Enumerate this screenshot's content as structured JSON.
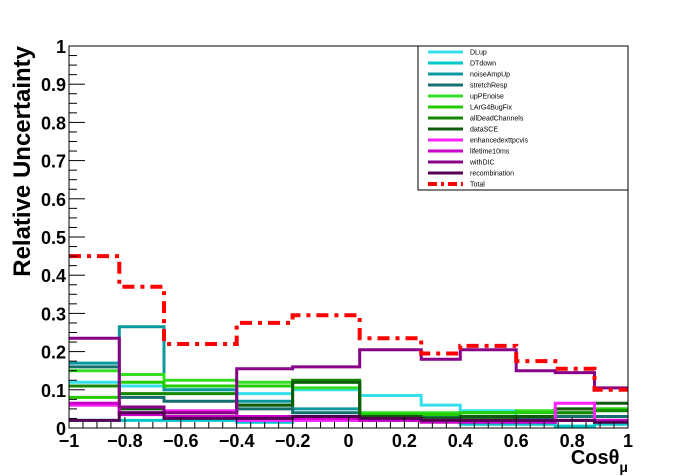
{
  "chart_data": {
    "type": "line",
    "step": true,
    "xlabel": "Cosθ",
    "xlabel_sub": "μ",
    "ylabel": "Relative Uncertainty",
    "xlim": [
      -1,
      1
    ],
    "ylim": [
      0,
      1
    ],
    "x_ticks": [
      -1,
      -0.8,
      -0.6,
      -0.4,
      -0.2,
      0,
      0.2,
      0.4,
      0.6,
      0.8,
      1
    ],
    "x_tick_labels": [
      "−1",
      "−0.8",
      "−0.6",
      "−0.4",
      "−0.2",
      "0",
      "0.2",
      "0.4",
      "0.6",
      "0.8",
      "1"
    ],
    "y_ticks": [
      0,
      0.1,
      0.2,
      0.3,
      0.4,
      0.5,
      0.6,
      0.7,
      0.8,
      0.9,
      1
    ],
    "y_tick_labels": [
      "0",
      "0.1",
      "0.2",
      "0.3",
      "0.4",
      "0.5",
      "0.6",
      "0.7",
      "0.8",
      "0.9",
      "1"
    ],
    "legend_position": "top-right",
    "bin_edges": [
      -1,
      -0.82,
      -0.66,
      -0.4,
      -0.2,
      0.04,
      0.26,
      0.4,
      0.6,
      0.74,
      0.88,
      1
    ],
    "series": [
      {
        "name": "DLup",
        "color": "#33e0ec",
        "width": 3,
        "dash": "solid",
        "values": [
          0.12,
          0.11,
          0.1,
          0.09,
          0.1,
          0.085,
          0.06,
          0.045,
          0.03,
          0.03,
          0.03
        ]
      },
      {
        "name": "DTdown",
        "color": "#00c8cc",
        "width": 3,
        "dash": "solid",
        "values": [
          0.02,
          0.02,
          0.02,
          0.015,
          0.02,
          0.02,
          0.02,
          0.01,
          0.01,
          0.005,
          0.01
        ]
      },
      {
        "name": "noiseAmpUp",
        "color": "#0a9a9e",
        "width": 3,
        "dash": "solid",
        "values": [
          0.17,
          0.265,
          0.1,
          0.07,
          0.05,
          0.035,
          0.03,
          0.03,
          0.03,
          0.03,
          0.03
        ]
      },
      {
        "name": "stretchResp",
        "color": "#156f6f",
        "width": 3,
        "dash": "solid",
        "values": [
          0.16,
          0.08,
          0.07,
          0.05,
          0.04,
          0.03,
          0.03,
          0.025,
          0.025,
          0.03,
          0.03
        ]
      },
      {
        "name": "upPEnoise",
        "color": "#33dd22",
        "width": 3,
        "dash": "solid",
        "values": [
          0.15,
          0.14,
          0.125,
          0.12,
          0.105,
          0.04,
          0.04,
          0.04,
          0.045,
          0.05,
          0.05
        ]
      },
      {
        "name": "LArG4BugFix",
        "color": "#22cc00",
        "width": 3,
        "dash": "solid",
        "values": [
          0.08,
          0.12,
          0.11,
          0.11,
          0.12,
          0.035,
          0.035,
          0.04,
          0.04,
          0.04,
          0.05
        ]
      },
      {
        "name": "allDeadChannels",
        "color": "#118800",
        "width": 3,
        "dash": "solid",
        "values": [
          0.11,
          0.09,
          0.09,
          0.06,
          0.125,
          0.02,
          0.02,
          0.025,
          0.03,
          0.04,
          0.045
        ]
      },
      {
        "name": "dataSCE",
        "color": "#0c5c0c",
        "width": 3,
        "dash": "solid",
        "values": [
          0.06,
          0.05,
          0.04,
          0.06,
          0.12,
          0.03,
          0.025,
          0.03,
          0.03,
          0.05,
          0.065
        ]
      },
      {
        "name": "enhancedexttpcvis",
        "color": "#ff22ff",
        "width": 3,
        "dash": "solid",
        "values": [
          0.06,
          0.04,
          0.045,
          0.02,
          0.02,
          0.02,
          0.02,
          0.02,
          0.02,
          0.065,
          0.02
        ]
      },
      {
        "name": "lifetime10ms",
        "color": "#cc00cc",
        "width": 3,
        "dash": "solid",
        "values": [
          0.065,
          0.035,
          0.03,
          0.03,
          0.025,
          0.02,
          0.015,
          0.015,
          0.015,
          0.02,
          0.02
        ]
      },
      {
        "name": "withDIC",
        "color": "#880088",
        "width": 3,
        "dash": "solid",
        "values": [
          0.235,
          0.055,
          0.04,
          0.155,
          0.16,
          0.205,
          0.18,
          0.205,
          0.15,
          0.145,
          0.105
        ]
      },
      {
        "name": "recombination",
        "color": "#550055",
        "width": 3,
        "dash": "solid",
        "values": [
          0.02,
          0.04,
          0.025,
          0.025,
          0.03,
          0.025,
          0.02,
          0.02,
          0.02,
          0.02,
          0.015
        ]
      },
      {
        "name": "Total",
        "color": "#ff0000",
        "width": 4,
        "dash": "12,6,4,6",
        "values": [
          0.45,
          0.37,
          0.22,
          0.275,
          0.295,
          0.235,
          0.195,
          0.215,
          0.175,
          0.155,
          0.1
        ]
      }
    ]
  }
}
